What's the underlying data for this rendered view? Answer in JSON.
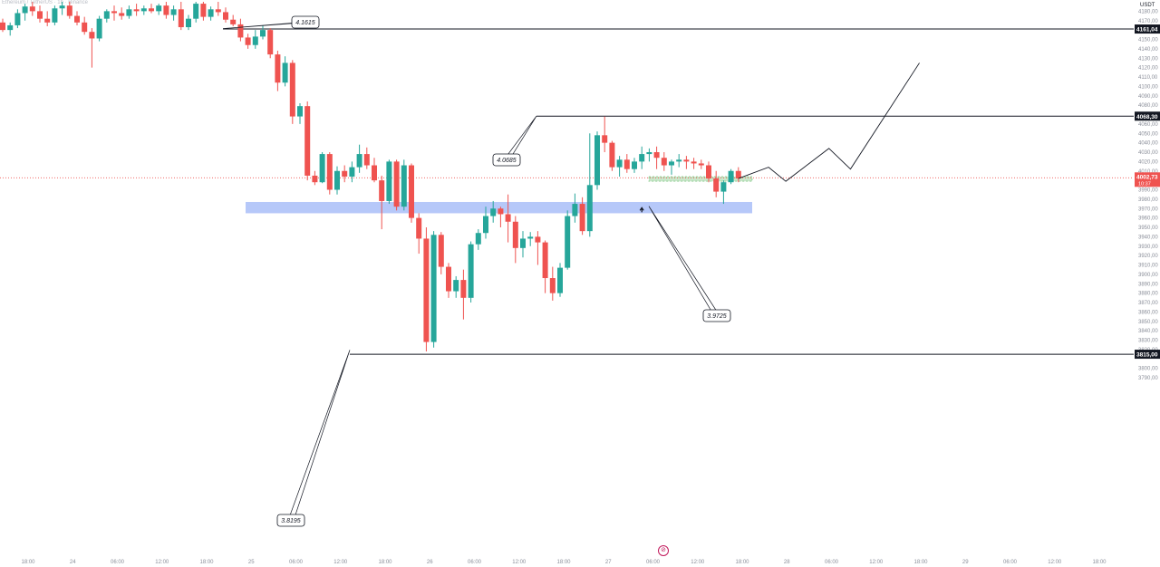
{
  "header": {
    "symbol_title": "Ethereum / TetherUS · 1h · Binance",
    "currency": "USDT"
  },
  "price_axis": {
    "ticks": [
      "4180,00",
      "4170,00",
      "4150,00",
      "4140,00",
      "4130,00",
      "4120,00",
      "4110,00",
      "4100,00",
      "4090,00",
      "4080,00",
      "4060,00",
      "4050,00",
      "4040,00",
      "4030,00",
      "4020,00",
      "4010,00",
      "3990,00",
      "3980,00",
      "3970,00",
      "3960,00",
      "3950,00",
      "3940,00",
      "3930,00",
      "3920,00",
      "3910,00",
      "3900,00",
      "3890,00",
      "3880,00",
      "3870,00",
      "3860,00",
      "3850,00",
      "3840,00",
      "3830,00",
      "3820,00",
      "3800,00",
      "3790,00"
    ],
    "marked_levels": [
      {
        "label": "4161,04",
        "value": 4161.04
      },
      {
        "label": "4068,30",
        "value": 4068.3
      },
      {
        "label": "3815,00",
        "value": 3815.0
      }
    ],
    "current_price": {
      "label": "4002,73",
      "countdown": "10:37",
      "value": 4002.73
    }
  },
  "time_axis": {
    "ticks": [
      "18:00",
      "24",
      "06:00",
      "12:00",
      "18:00",
      "25",
      "06:00",
      "12:00",
      "18:00",
      "26",
      "06:00",
      "12:00",
      "18:00",
      "27",
      "06:00",
      "12:00",
      "18:00",
      "28",
      "06:00",
      "12:00",
      "18:00",
      "29",
      "06:00",
      "12:00",
      "18:00"
    ]
  },
  "annotations": [
    {
      "label": "4.1615",
      "value": 4161.5
    },
    {
      "label": "4.0685",
      "value": 4068.5
    },
    {
      "label": "3.9725",
      "value": 3972.5
    },
    {
      "label": "3.8195",
      "value": 3819.5
    }
  ],
  "zones": [
    {
      "name": "demand-zone",
      "from": 3965,
      "to": 3977,
      "color": "#3f6ff0"
    },
    {
      "name": "target-zone",
      "from": 3999,
      "to": 4004,
      "color": "#4caf50"
    }
  ],
  "colors": {
    "up": "#26a69a",
    "down": "#ef5350",
    "level": "#131722",
    "axis_text": "#8a8e99"
  },
  "watermark_icon": "tradingview-logo-icon",
  "chart_data": {
    "type": "candlestick",
    "timeframe": "1h",
    "y_unit": "USDT",
    "ylim": [
      3790,
      4190
    ],
    "candles": [
      [
        4168,
        4172,
        4158,
        4160
      ],
      [
        4160,
        4168,
        4154,
        4165
      ],
      [
        4165,
        4182,
        4162,
        4178
      ],
      [
        4178,
        4188,
        4170,
        4185
      ],
      [
        4185,
        4190,
        4175,
        4180
      ],
      [
        4180,
        4186,
        4168,
        4172
      ],
      [
        4172,
        4180,
        4164,
        4168
      ],
      [
        4168,
        4186,
        4165,
        4183
      ],
      [
        4183,
        4190,
        4176,
        4186
      ],
      [
        4186,
        4190,
        4172,
        4175
      ],
      [
        4175,
        4180,
        4165,
        4168
      ],
      [
        4168,
        4174,
        4155,
        4158
      ],
      [
        4158,
        4162,
        4120,
        4151
      ],
      [
        4151,
        4175,
        4148,
        4172
      ],
      [
        4172,
        4182,
        4168,
        4180
      ],
      [
        4180,
        4186,
        4170,
        4178
      ],
      [
        4178,
        4184,
        4171,
        4175
      ],
      [
        4175,
        4186,
        4172,
        4182
      ],
      [
        4182,
        4188,
        4175,
        4180
      ],
      [
        4180,
        4186,
        4176,
        4183
      ],
      [
        4183,
        4188,
        4178,
        4180
      ],
      [
        4180,
        4188,
        4176,
        4186
      ],
      [
        4186,
        4190,
        4172,
        4176
      ],
      [
        4176,
        4186,
        4170,
        4182
      ],
      [
        4182,
        4190,
        4160,
        4163
      ],
      [
        4163,
        4176,
        4160,
        4172
      ],
      [
        4172,
        4190,
        4168,
        4188
      ],
      [
        4188,
        4190,
        4170,
        4174
      ],
      [
        4174,
        4185,
        4170,
        4182
      ],
      [
        4182,
        4190,
        4175,
        4179
      ],
      [
        4179,
        4184,
        4168,
        4171
      ],
      [
        4171,
        4176,
        4164,
        4166
      ],
      [
        4166,
        4172,
        4148,
        4152
      ],
      [
        4152,
        4156,
        4140,
        4144
      ],
      [
        4144,
        4160,
        4140,
        4153
      ],
      [
        4153,
        4165,
        4150,
        4160
      ],
      [
        4160,
        4162,
        4130,
        4134
      ],
      [
        4134,
        4138,
        4095,
        4104
      ],
      [
        4104,
        4132,
        4100,
        4125
      ],
      [
        4125,
        4128,
        4060,
        4068
      ],
      [
        4068,
        4082,
        4060,
        4079
      ],
      [
        4079,
        4084,
        4000,
        4005
      ],
      [
        4005,
        4010,
        3995,
        3998
      ],
      [
        3998,
        4030,
        3997,
        4028
      ],
      [
        4028,
        4030,
        3985,
        3990
      ],
      [
        3990,
        4015,
        3985,
        4010
      ],
      [
        4010,
        4016,
        3998,
        4004
      ],
      [
        4004,
        4020,
        3998,
        4014
      ],
      [
        4014,
        4038,
        4008,
        4028
      ],
      [
        4028,
        4035,
        4012,
        4016
      ],
      [
        4016,
        4024,
        3998,
        4000
      ],
      [
        4000,
        4005,
        3948,
        3978
      ],
      [
        3978,
        4022,
        3975,
        4020
      ],
      [
        4020,
        4022,
        3968,
        3972
      ],
      [
        3972,
        4022,
        3968,
        4016
      ],
      [
        4016,
        4018,
        3955,
        3960
      ],
      [
        3960,
        3965,
        3922,
        3938
      ],
      [
        3938,
        3950,
        3818,
        3828
      ],
      [
        3828,
        3946,
        3822,
        3942
      ],
      [
        3942,
        3945,
        3900,
        3908
      ],
      [
        3908,
        3912,
        3875,
        3882
      ],
      [
        3882,
        3898,
        3875,
        3894
      ],
      [
        3894,
        3905,
        3852,
        3875
      ],
      [
        3875,
        3935,
        3870,
        3932
      ],
      [
        3932,
        3948,
        3926,
        3944
      ],
      [
        3944,
        3972,
        3938,
        3962
      ],
      [
        3962,
        3978,
        3955,
        3970
      ],
      [
        3970,
        3972,
        3950,
        3964
      ],
      [
        3964,
        3985,
        3934,
        3956
      ],
      [
        3956,
        3962,
        3912,
        3928
      ],
      [
        3928,
        3946,
        3918,
        3938
      ],
      [
        3938,
        3945,
        3930,
        3940
      ],
      [
        3940,
        3946,
        3910,
        3934
      ],
      [
        3934,
        3936,
        3880,
        3896
      ],
      [
        3896,
        3908,
        3872,
        3880
      ],
      [
        3880,
        3912,
        3876,
        3907
      ],
      [
        3907,
        3968,
        3905,
        3962
      ],
      [
        3962,
        3986,
        3955,
        3975
      ],
      [
        3975,
        3982,
        3942,
        3946
      ],
      [
        3946,
        4050,
        3940,
        3995
      ],
      [
        3995,
        4052,
        3990,
        4048
      ],
      [
        4048,
        4068,
        4030,
        4040
      ],
      [
        4040,
        4042,
        4010,
        4014
      ],
      [
        4014,
        4026,
        4004,
        4022
      ],
      [
        4022,
        4028,
        4008,
        4012
      ],
      [
        4012,
        4024,
        4008,
        4020
      ],
      [
        4020,
        4036,
        4012,
        4028
      ],
      [
        4028,
        4034,
        4020,
        4030
      ],
      [
        4030,
        4036,
        4012,
        4024
      ],
      [
        4024,
        4030,
        4010,
        4016
      ],
      [
        4016,
        4022,
        4006,
        4020
      ],
      [
        4020,
        4028,
        4014,
        4022
      ],
      [
        4022,
        4026,
        4012,
        4020
      ],
      [
        4020,
        4024,
        4012,
        4018
      ],
      [
        4018,
        4022,
        4012,
        4016
      ],
      [
        4016,
        4020,
        3998,
        4002
      ],
      [
        4002,
        4010,
        3982,
        3988
      ],
      [
        3988,
        4000,
        3975,
        3998
      ],
      [
        3998,
        4012,
        3996,
        4010
      ],
      [
        4010,
        4014,
        3998,
        4002
      ]
    ],
    "projection": [
      {
        "hours_after_last": 0,
        "price": 4002
      },
      {
        "hours_after_last": 7,
        "price": 4014
      },
      {
        "hours_after_last": 11,
        "price": 3999
      },
      {
        "hours_after_last": 21,
        "price": 4034
      },
      {
        "hours_after_last": 26,
        "price": 4012
      },
      {
        "hours_after_last": 42,
        "price": 4125
      }
    ]
  }
}
